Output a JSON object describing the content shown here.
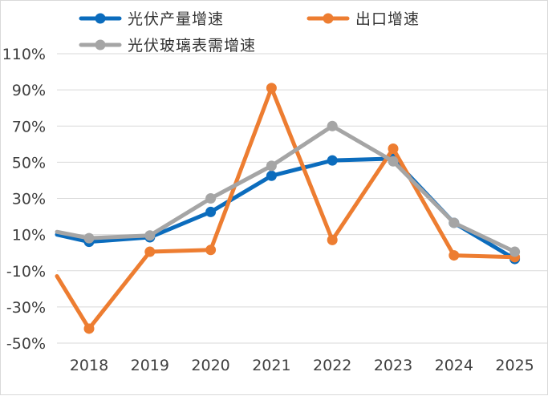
{
  "chart_data": {
    "type": "line",
    "categories": [
      "2018",
      "2019",
      "2020",
      "2021",
      "2022",
      "2023",
      "2024",
      "2025"
    ],
    "ylim": [
      -50,
      110
    ],
    "yticks": [
      "110%",
      "90%",
      "70%",
      "50%",
      "30%",
      "10%",
      "-10%",
      "-30%",
      "-50%"
    ],
    "grid": true,
    "legend_position": "top",
    "series": [
      {
        "name": "光伏产量增速",
        "color": "#0b6cbd",
        "start_value": 10,
        "values": [
          6,
          8.5,
          22.5,
          42.5,
          51,
          52,
          16.5,
          -3.5
        ]
      },
      {
        "name": "出口增速",
        "color": "#ed7d31",
        "start_value": -13,
        "values": [
          -42,
          0.5,
          1.5,
          91,
          7,
          57.5,
          -1.5,
          -2.5
        ]
      },
      {
        "name": "光伏玻璃表需增速",
        "color": "#a5a5a5",
        "start_value": 11.5,
        "values": [
          8,
          9.5,
          30,
          48,
          70,
          50.5,
          16.5,
          0.5
        ]
      }
    ]
  }
}
